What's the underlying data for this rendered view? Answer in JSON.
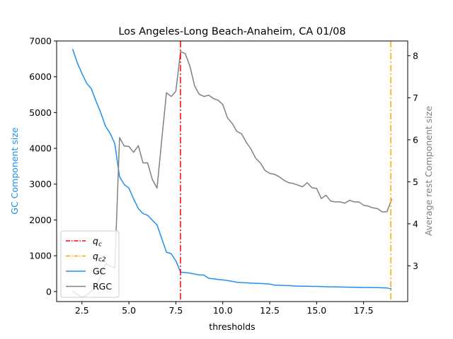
{
  "chart_data": {
    "type": "line",
    "title": "Los Angeles-Long Beach-Anaheim, CA 01/08",
    "xlabel": "thresholds",
    "ylabel_left": "GC Component size",
    "ylabel_right": "Average rest Component size",
    "xlim": [
      1.15,
      19.85
    ],
    "ylim_left": [
      -280,
      7000
    ],
    "ylim_right": [
      2.15,
      8.35
    ],
    "xticks": [
      2.5,
      5.0,
      7.5,
      10.0,
      12.5,
      15.0,
      17.5
    ],
    "xtick_labels": [
      "2.5",
      "5.0",
      "7.5",
      "10.0",
      "12.5",
      "15.0",
      "17.5"
    ],
    "yticks_left": [
      0,
      1000,
      2000,
      3000,
      4000,
      5000,
      6000,
      7000
    ],
    "ytick_labels_left": [
      "0",
      "1000",
      "2000",
      "3000",
      "4000",
      "5000",
      "6000",
      "7000"
    ],
    "yticks_right": [
      3,
      4,
      5,
      6,
      7,
      8
    ],
    "ytick_labels_right": [
      "3",
      "4",
      "5",
      "6",
      "7",
      "8"
    ],
    "colors": {
      "gc": "#1f8ff0",
      "rgc": "#808080",
      "qc": "#ff0000",
      "qc2": "#ffa500",
      "gc_label": "#1f8ff0",
      "rgc_label": "#808080"
    },
    "vlines": [
      {
        "name": "qc",
        "x": 7.75
      },
      {
        "name": "qc2",
        "x": 18.95
      }
    ],
    "legend": {
      "position": "lower-left",
      "entries": [
        {
          "key": "qc",
          "label": "q",
          "sub": "c"
        },
        {
          "key": "qc2",
          "label": "q",
          "sub": "c2"
        },
        {
          "key": "gc",
          "label": "GC",
          "sub": ""
        },
        {
          "key": "rgc",
          "label": "RGC",
          "sub": ""
        }
      ]
    },
    "series": [
      {
        "name": "GC",
        "axis": "left",
        "x": [
          2.0,
          2.25,
          2.5,
          2.75,
          3.0,
          3.25,
          3.5,
          3.75,
          4.0,
          4.25,
          4.5,
          4.75,
          5.0,
          5.25,
          5.5,
          5.75,
          6.0,
          6.25,
          6.5,
          6.75,
          7.0,
          7.25,
          7.5,
          7.75,
          8.0,
          8.25,
          8.5,
          8.75,
          9.0,
          9.25,
          9.5,
          9.75,
          10.0,
          10.25,
          10.5,
          10.75,
          11.0,
          11.25,
          11.5,
          11.75,
          12.0,
          12.25,
          12.5,
          12.75,
          13.0,
          13.25,
          13.5,
          13.75,
          14.0,
          14.25,
          14.5,
          14.75,
          15.0,
          15.25,
          15.5,
          15.75,
          16.0,
          16.25,
          16.5,
          16.75,
          17.0,
          17.25,
          17.5,
          17.75,
          18.0,
          18.25,
          18.5,
          18.75,
          19.0
        ],
        "values": [
          6780,
          6390,
          6090,
          5820,
          5660,
          5320,
          5000,
          4620,
          4420,
          4130,
          3210,
          2990,
          2890,
          2590,
          2320,
          2180,
          2130,
          1990,
          1860,
          1480,
          1100,
          1060,
          860,
          540,
          530,
          515,
          490,
          465,
          460,
          370,
          355,
          335,
          325,
          305,
          285,
          260,
          250,
          245,
          235,
          230,
          225,
          220,
          210,
          180,
          175,
          170,
          165,
          160,
          150,
          150,
          148,
          145,
          145,
          140,
          135,
          132,
          130,
          127,
          125,
          122,
          118,
          115,
          113,
          112,
          110,
          108,
          105,
          100,
          70
        ]
      },
      {
        "name": "RGC",
        "axis": "right",
        "x": [
          2.0,
          2.25,
          2.5,
          2.75,
          3.0,
          3.25,
          3.5,
          3.75,
          4.0,
          4.25,
          4.5,
          4.75,
          5.0,
          5.25,
          5.5,
          5.75,
          6.0,
          6.25,
          6.5,
          6.75,
          7.0,
          7.25,
          7.5,
          7.75,
          8.0,
          8.25,
          8.5,
          8.75,
          9.0,
          9.25,
          9.5,
          9.75,
          10.0,
          10.25,
          10.5,
          10.75,
          11.0,
          11.25,
          11.5,
          11.75,
          12.0,
          12.25,
          12.5,
          12.75,
          13.0,
          13.25,
          13.5,
          13.75,
          14.0,
          14.25,
          14.5,
          14.75,
          15.0,
          15.25,
          15.5,
          15.75,
          16.0,
          16.25,
          16.5,
          16.75,
          17.0,
          17.25,
          17.5,
          17.75,
          18.0,
          18.25,
          18.5,
          18.75,
          19.0
        ],
        "values": [
          2.4,
          2.32,
          2.25,
          2.3,
          2.4,
          2.5,
          2.75,
          3.05,
          3.0,
          2.95,
          6.05,
          5.85,
          5.84,
          5.7,
          5.86,
          5.45,
          5.45,
          5.05,
          4.85,
          6.0,
          7.12,
          7.03,
          7.15,
          8.1,
          8.05,
          7.75,
          7.28,
          7.08,
          7.03,
          7.06,
          6.98,
          6.94,
          6.84,
          6.52,
          6.39,
          6.2,
          6.14,
          5.94,
          5.78,
          5.56,
          5.45,
          5.27,
          5.2,
          5.18,
          5.12,
          5.04,
          4.98,
          4.96,
          4.92,
          4.88,
          4.98,
          4.86,
          4.84,
          4.6,
          4.68,
          4.54,
          4.52,
          4.52,
          4.49,
          4.56,
          4.52,
          4.52,
          4.44,
          4.42,
          4.38,
          4.36,
          4.28,
          4.29,
          4.59
        ]
      }
    ]
  }
}
